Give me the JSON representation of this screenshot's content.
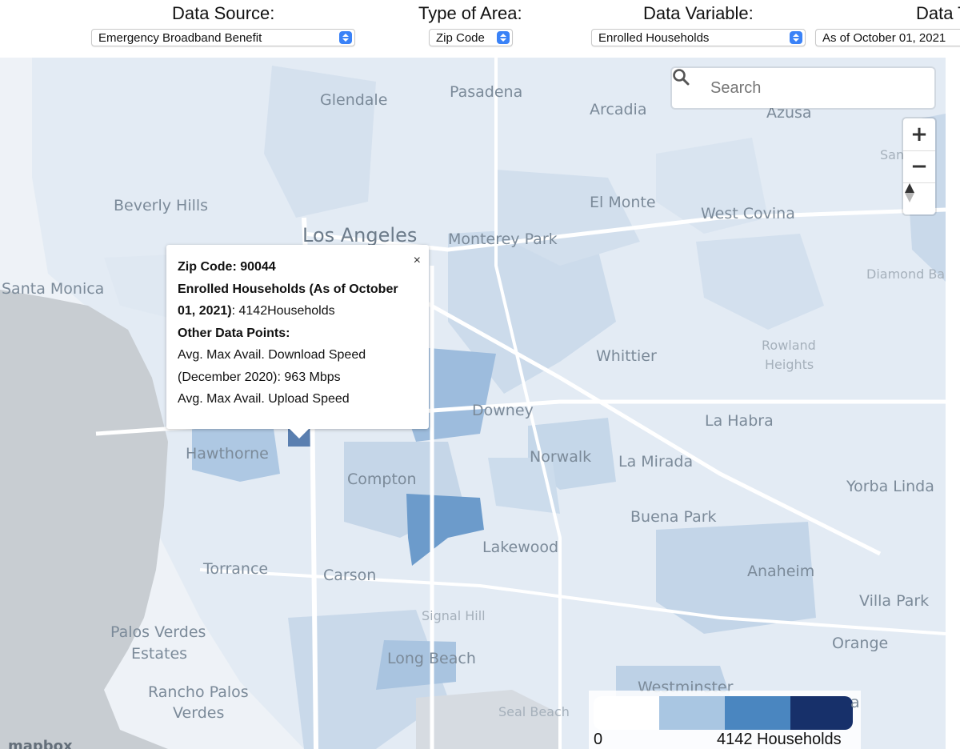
{
  "controls": {
    "data_source": {
      "label": "Data Source:",
      "value": "Emergency Broadband Benefit"
    },
    "type_of_area": {
      "label": "Type of Area:",
      "value": "Zip Code"
    },
    "data_variable": {
      "label": "Data Variable:",
      "value": "Enrolled Households"
    },
    "data_time": {
      "label": "Data T",
      "value": "As of October 01, 2021"
    }
  },
  "search": {
    "placeholder": "Search"
  },
  "zoom": {
    "plus": "+",
    "minus": "−"
  },
  "places": {
    "glendale": "Glendale",
    "pasadena": "Pasadena",
    "arcadia": "Arcadia",
    "azusa": "Azusa",
    "san_dimas": "San",
    "beverly_hills": "Beverly Hills",
    "el_monte": "El Monte",
    "west_covina": "West Covina",
    "los_angeles": "Los Angeles",
    "monterey_park": "Monterey Park",
    "santa_monica": "Santa Monica",
    "diamond_bar": "Diamond Ba",
    "whittier": "Whittier",
    "rowland_heights_1": "Rowland",
    "rowland_heights_2": "Heights",
    "downey": "Downey",
    "la_habra": "La Habra",
    "hawthorne": "Hawthorne",
    "norwalk": "Norwalk",
    "la_mirada": "La Mirada",
    "compton": "Compton",
    "yorba_linda": "Yorba Linda",
    "buena_park": "Buena Park",
    "lakewood": "Lakewood",
    "torrance": "Torrance",
    "carson": "Carson",
    "anaheim": "Anaheim",
    "villa_park": "Villa Park",
    "signal_hill": "Signal Hill",
    "palos_verdes_1": "Palos Verdes",
    "palos_verdes_2": "Estates",
    "long_beach": "Long Beach",
    "orange": "Orange",
    "rancho_1": "Rancho Palos",
    "rancho_2": "Verdes",
    "westminster": "Westminster",
    "seal_beach": "Seal Beach",
    "partial_a": "a"
  },
  "popup": {
    "close": "×",
    "zip_label": "Zip Code: 90044",
    "enrolled_label": "Enrolled Households (As of October 01, 2021)",
    "enrolled_value": ": 4142Households",
    "other_label": "Other Data Points:",
    "line1": "Avg. Max Avail. Download Speed",
    "line2": "(December 2020): 963 Mbps",
    "line3": "Avg. Max Avail. Upload Speed"
  },
  "legend": {
    "min": "0",
    "max": "4142 Households",
    "colors": [
      "#ffffff",
      "#a9c6e2",
      "#4a86c0",
      "#17306a"
    ]
  },
  "attribution": {
    "logo": "mapbox"
  }
}
